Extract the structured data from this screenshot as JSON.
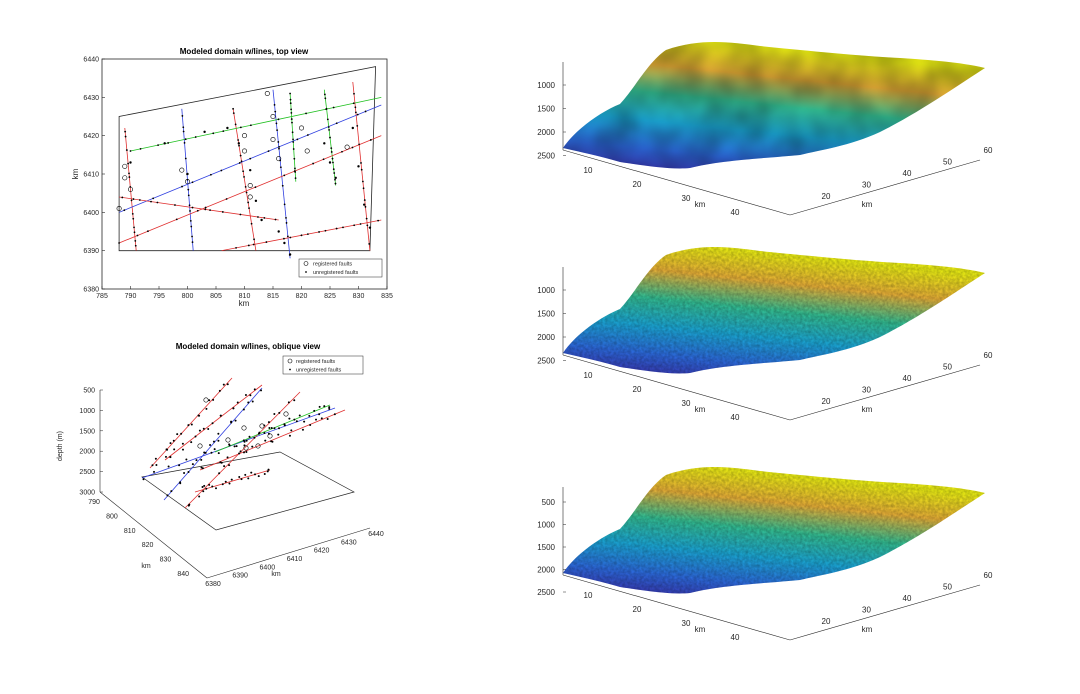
{
  "chart_data": [
    {
      "id": "top_view",
      "type": "scatter",
      "title": "Modeled domain w/lines, top view",
      "xlabel": "km",
      "ylabel": "km",
      "xlim": [
        785,
        835
      ],
      "ylim": [
        6380,
        6440
      ],
      "x_ticks": [
        "785",
        "790",
        "795",
        "800",
        "805",
        "810",
        "815",
        "820",
        "825",
        "830",
        "835"
      ],
      "y_ticks": [
        "6380",
        "6390",
        "6400",
        "6410",
        "6420",
        "6430",
        "6440"
      ],
      "legend": {
        "placement": "bottom-right",
        "entries": [
          "registered faults",
          "unregistered faults"
        ]
      },
      "domain_outline": [
        [
          788,
          6390
        ],
        [
          832,
          6390
        ],
        [
          833,
          6438
        ],
        [
          788,
          6425
        ]
      ],
      "lines": [
        {
          "color": "#e03030",
          "points": [
            [
              789,
              6422
            ],
            [
              791,
              6390
            ]
          ]
        },
        {
          "color": "#3040e0",
          "points": [
            [
              799,
              6427
            ],
            [
              801,
              6390
            ]
          ]
        },
        {
          "color": "#e03030",
          "points": [
            [
              808,
              6427
            ],
            [
              812,
              6390
            ]
          ]
        },
        {
          "color": "#3040e0",
          "points": [
            [
              815,
              6432
            ],
            [
              818,
              6388
            ]
          ]
        },
        {
          "color": "#20c020",
          "points": [
            [
              818,
              6431
            ],
            [
              819,
              6408
            ]
          ]
        },
        {
          "color": "#20c020",
          "points": [
            [
              824,
              6432
            ],
            [
              826,
              6407
            ]
          ]
        },
        {
          "color": "#e03030",
          "points": [
            [
              829,
              6434
            ],
            [
              832,
              6390
            ]
          ]
        },
        {
          "color": "#3040e0",
          "points": [
            [
              788,
              6400
            ],
            [
              834,
              6428
            ]
          ]
        },
        {
          "color": "#20c020",
          "points": [
            [
              790,
              6416
            ],
            [
              834,
              6430
            ]
          ]
        },
        {
          "color": "#e03030",
          "points": [
            [
              788,
              6404
            ],
            [
              816,
              6398
            ]
          ]
        },
        {
          "color": "#e03030",
          "points": [
            [
              788,
              6392
            ],
            [
              834,
              6420
            ]
          ]
        },
        {
          "color": "#e03030",
          "points": [
            [
              806,
              6390
            ],
            [
              834,
              6398
            ]
          ]
        }
      ],
      "registered_faults": [
        [
          789,
          6412
        ],
        [
          789,
          6409
        ],
        [
          790,
          6406
        ],
        [
          799,
          6411
        ],
        [
          800,
          6408
        ],
        [
          810,
          6420
        ],
        [
          810,
          6416
        ],
        [
          811,
          6407
        ],
        [
          811,
          6404
        ],
        [
          814,
          6431
        ],
        [
          815,
          6425
        ],
        [
          815,
          6419
        ],
        [
          816,
          6414
        ],
        [
          820,
          6422
        ],
        [
          821,
          6416
        ],
        [
          788,
          6401
        ],
        [
          828,
          6417
        ]
      ],
      "unregistered_faults": [
        [
          790,
          6413
        ],
        [
          800,
          6410
        ],
        [
          809,
          6418
        ],
        [
          812,
          6403
        ],
        [
          813,
          6398
        ],
        [
          816,
          6395
        ],
        [
          817,
          6392
        ],
        [
          818,
          6389
        ],
        [
          824,
          6418
        ],
        [
          825,
          6413
        ],
        [
          826,
          6409
        ],
        [
          829,
          6422
        ],
        [
          830,
          6412
        ],
        [
          831,
          6402
        ],
        [
          832,
          6396
        ],
        [
          796,
          6418
        ],
        [
          803,
          6421
        ],
        [
          807,
          6422
        ],
        [
          811,
          6411
        ]
      ]
    },
    {
      "id": "oblique_view",
      "type": "scatter",
      "title": "Modeled domain w/lines, oblique view",
      "xlabel": "km",
      "ylabel": "km",
      "zlabel": "depth (m)",
      "z_ticks": [
        "500",
        "1000",
        "1500",
        "2000",
        "2500",
        "3000"
      ],
      "x_ticks": [
        "790",
        "800",
        "810",
        "820",
        "830",
        "840"
      ],
      "y_ticks": [
        "6380",
        "6390",
        "6400",
        "6410",
        "6420",
        "6430",
        "6440"
      ],
      "legend": {
        "placement": "top-right",
        "entries": [
          "registered faults",
          "unregistered faults"
        ]
      }
    },
    {
      "id": "surface_1",
      "type": "surface",
      "xlabel": "km",
      "ylabel": "km",
      "x_ticks": [
        "10",
        "20",
        "30",
        "40"
      ],
      "y_ticks": [
        "20",
        "30",
        "40",
        "50",
        "60"
      ],
      "z_ticks": [
        "1000",
        "1500",
        "2000",
        "2500"
      ],
      "colormap": [
        "#3e26a8",
        "#1cafe1",
        "#36c89a",
        "#f5a93a",
        "#f9fb15"
      ]
    },
    {
      "id": "surface_2",
      "type": "surface",
      "xlabel": "km",
      "ylabel": "km",
      "x_ticks": [
        "10",
        "20",
        "30",
        "40"
      ],
      "y_ticks": [
        "20",
        "30",
        "40",
        "50",
        "60"
      ],
      "z_ticks": [
        "1000",
        "1500",
        "2000",
        "2500"
      ],
      "colormap": [
        "#3e26a8",
        "#1cafe1",
        "#36c89a",
        "#f5a93a",
        "#f9fb15"
      ]
    },
    {
      "id": "surface_3",
      "type": "surface",
      "xlabel": "km",
      "ylabel": "km",
      "x_ticks": [
        "10",
        "20",
        "30",
        "40"
      ],
      "y_ticks": [
        "20",
        "30",
        "40",
        "50",
        "60"
      ],
      "z_ticks": [
        "500",
        "1000",
        "1500",
        "2000",
        "2500"
      ],
      "colormap": [
        "#3e26a8",
        "#1cafe1",
        "#36c89a",
        "#f5a93a",
        "#f9fb15"
      ]
    }
  ]
}
